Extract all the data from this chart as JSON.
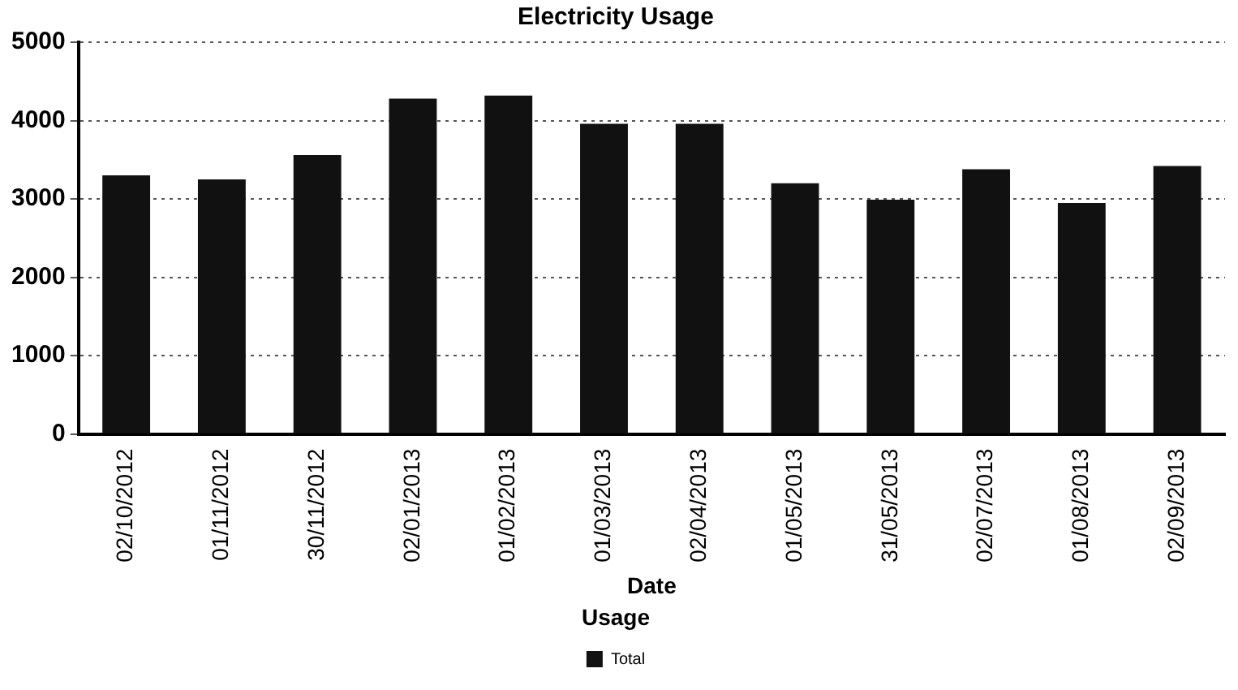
{
  "chart_data": {
    "type": "bar",
    "title": "Electricity Usage",
    "xlabel": "Date",
    "legend_title": "Usage",
    "categories": [
      "02/10/2012",
      "01/11/2012",
      "30/11/2012",
      "02/01/2013",
      "01/02/2013",
      "01/03/2013",
      "02/04/2013",
      "01/05/2013",
      "31/05/2013",
      "02/07/2013",
      "01/08/2013",
      "02/09/2013"
    ],
    "series": [
      {
        "name": "Total",
        "color": "#111111",
        "values": [
          3300,
          3250,
          3560,
          4280,
          4320,
          3960,
          3960,
          3200,
          2990,
          3380,
          2950,
          3420
        ]
      }
    ],
    "ylim": [
      0,
      5000
    ],
    "yticks": [
      0,
      1000,
      2000,
      3000,
      4000,
      5000
    ],
    "grid": "y",
    "legend": "bottom"
  }
}
